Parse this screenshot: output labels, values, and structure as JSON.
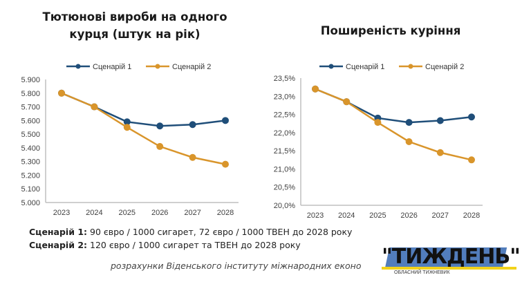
{
  "chart_data": [
    {
      "type": "line",
      "title": "Тютюнові вироби на одного курця (штук на рік)",
      "title_lines": [
        "Тютюнові вироби на одного",
        "курця (штук на рік)"
      ],
      "x": [
        "2023",
        "2024",
        "2025",
        "2026",
        "2027",
        "2028"
      ],
      "ylim": [
        5.0,
        5.9
      ],
      "yticks": [
        "5.000",
        "5.100",
        "5.200",
        "5.300",
        "5.400",
        "5.500",
        "5.600",
        "5.700",
        "5.800",
        "5.900"
      ],
      "ytick_values": [
        5.0,
        5.1,
        5.2,
        5.3,
        5.4,
        5.5,
        5.6,
        5.7,
        5.8,
        5.9
      ],
      "legend": "top-center",
      "grid": false,
      "series": [
        {
          "name": "Сценарій 1",
          "color": "#1f4e79",
          "values": [
            5.8,
            5.7,
            5.59,
            5.56,
            5.57,
            5.6
          ]
        },
        {
          "name": "Сценарій 2",
          "color": "#d9952b",
          "values": [
            5.8,
            5.7,
            5.55,
            5.41,
            5.33,
            5.28
          ]
        }
      ]
    },
    {
      "type": "line",
      "title": "Поширеність куріння",
      "title_lines": [
        "Поширеність куріння"
      ],
      "x": [
        "2023",
        "2024",
        "2025",
        "2026",
        "2027",
        "2028"
      ],
      "ylim": [
        20.0,
        23.5
      ],
      "yticks": [
        "20,0%",
        "20,5%",
        "21,0%",
        "21,5%",
        "22,0%",
        "22,5%",
        "23,0%",
        "23,5%"
      ],
      "ytick_values": [
        20.0,
        20.5,
        21.0,
        21.5,
        22.0,
        22.5,
        23.0,
        23.5
      ],
      "legend": "top-center",
      "grid": false,
      "series": [
        {
          "name": "Сценарій 1",
          "color": "#1f4e79",
          "values": [
            23.2,
            22.85,
            22.4,
            22.28,
            22.33,
            22.43
          ]
        },
        {
          "name": "Сценарій 2",
          "color": "#d9952b",
          "values": [
            23.2,
            22.85,
            22.28,
            21.75,
            21.45,
            21.25
          ]
        }
      ]
    }
  ],
  "captions": {
    "scenario1_label": "Сценарій 1:",
    "scenario1_text": " 90 євро / 1000 сигарет, 72 євро / 1000 ТВЕН до 2028 року",
    "scenario2_label": "Сценарій 2:",
    "scenario2_text": " 120 євро / 1000 сигарет та ТВЕН до 2028 року",
    "source": "розрахунки Віденського інституту міжнародних еконо"
  },
  "watermark": {
    "word": "\"ТИЖДЕНЬ\"",
    "sub": "ОБЛАСНИЙ ТИЖНЕВИК"
  }
}
